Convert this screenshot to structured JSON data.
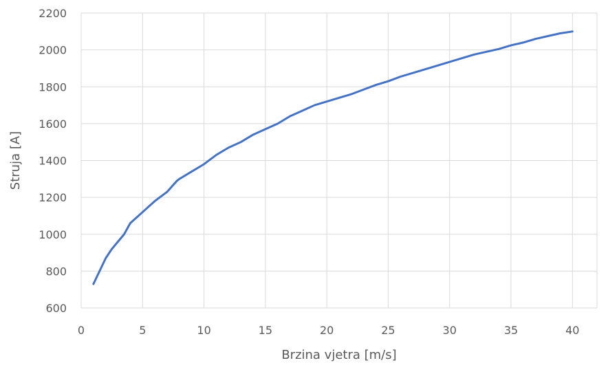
{
  "chart_data": {
    "type": "line",
    "title": "",
    "xlabel": "Brzina vjetra [m/s]",
    "ylabel": "Struja [A]",
    "xlim": [
      0,
      42
    ],
    "ylim": [
      600,
      2200
    ],
    "x_ticks": [
      0,
      5,
      10,
      15,
      20,
      25,
      30,
      35,
      40
    ],
    "y_ticks": [
      600,
      800,
      1000,
      1200,
      1400,
      1600,
      1800,
      2000,
      2200
    ],
    "x_tick_labels": [
      "0",
      "5",
      "10",
      "15",
      "20",
      "25",
      "30",
      "35",
      "40"
    ],
    "y_tick_labels": [
      "600",
      "800",
      "1000",
      "1200",
      "1400",
      "1600",
      "1800",
      "2000",
      "2200"
    ],
    "grid": "both",
    "legend": "none",
    "series": [
      {
        "color": "#4472c4",
        "x": [
          1,
          1.5,
          2,
          2.5,
          3,
          3.5,
          4,
          5,
          6,
          7,
          7.8,
          8,
          9,
          10,
          11,
          12,
          13,
          14,
          15,
          16,
          17,
          18,
          19,
          20,
          21,
          22,
          23,
          24,
          25,
          26,
          27,
          28,
          29,
          30,
          31,
          32,
          33,
          34,
          35,
          36,
          37,
          38,
          39,
          40
        ],
        "y": [
          730,
          800,
          870,
          920,
          960,
          1000,
          1060,
          1120,
          1180,
          1230,
          1290,
          1300,
          1340,
          1380,
          1430,
          1470,
          1500,
          1540,
          1570,
          1600,
          1640,
          1670,
          1700,
          1720,
          1740,
          1760,
          1785,
          1810,
          1830,
          1855,
          1875,
          1895,
          1915,
          1935,
          1955,
          1975,
          1990,
          2005,
          2025,
          2040,
          2060,
          2075,
          2090,
          2100
        ]
      }
    ]
  }
}
